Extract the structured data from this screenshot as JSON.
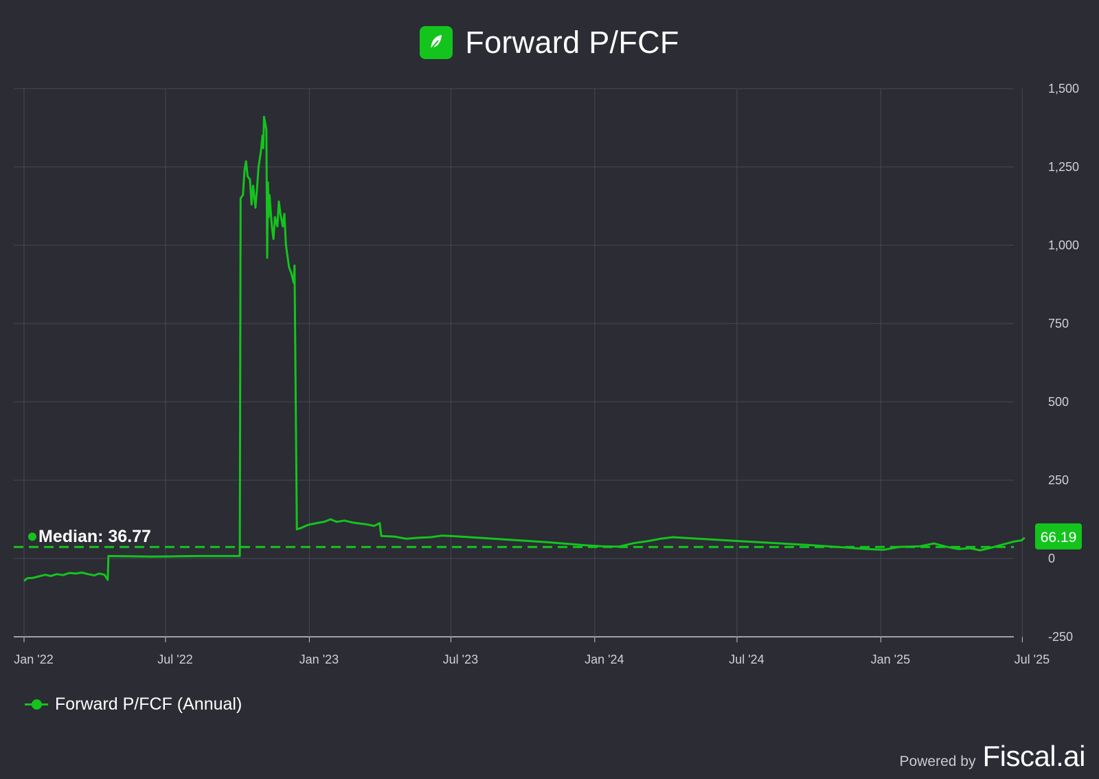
{
  "header": {
    "title": "Forward P/FCF",
    "logo_icon": "feather-icon",
    "logo_color": "#14c41d"
  },
  "legend": {
    "label": "Forward P/FCF (Annual)"
  },
  "footer": {
    "powered_by": "Powered by",
    "brand": "Fiscal.ai"
  },
  "colors": {
    "background": "#2b2c34",
    "series": "#14c41d",
    "grid": "#474852",
    "axis_text": "#d0d1d6"
  },
  "chart_data": {
    "type": "line",
    "title": "Forward P/FCF",
    "ylim": [
      -250,
      1500
    ],
    "yticks": [
      -250,
      0,
      250,
      500,
      750,
      1000,
      1250,
      1500
    ],
    "ytick_labels": [
      "-250",
      "0",
      "250",
      "500",
      "750",
      "1,000",
      "1,250",
      "1,500"
    ],
    "xlim": [
      "2022-01-01",
      "2025-07-05"
    ],
    "xticks": [
      "2022-01-01",
      "2022-07-01",
      "2023-01-01",
      "2023-07-01",
      "2024-01-01",
      "2024-07-01",
      "2025-01-01",
      "2025-07-01"
    ],
    "xtick_labels": [
      "Jan '22",
      "Jul '22",
      "Jan '23",
      "Jul '23",
      "Jan '24",
      "Jul '24",
      "Jan '25",
      "Jul '25"
    ],
    "grid": true,
    "legend_position": "bottom-left",
    "median": {
      "label": "Median: 36.77",
      "value": 36.77
    },
    "last_value": {
      "label": "66.19",
      "value": 66.19
    },
    "series": [
      {
        "name": "Forward P/FCF (Annual)",
        "points": [
          [
            "2022-01-01",
            -72
          ],
          [
            "2022-01-05",
            -63
          ],
          [
            "2022-01-12",
            -62
          ],
          [
            "2022-01-20",
            -57
          ],
          [
            "2022-01-28",
            -52
          ],
          [
            "2022-02-04",
            -56
          ],
          [
            "2022-02-12",
            -50
          ],
          [
            "2022-02-20",
            -53
          ],
          [
            "2022-02-28",
            -46
          ],
          [
            "2022-03-08",
            -48
          ],
          [
            "2022-03-16",
            -45
          ],
          [
            "2022-03-24",
            -50
          ],
          [
            "2022-04-01",
            -54
          ],
          [
            "2022-04-07",
            -48
          ],
          [
            "2022-04-14",
            -52
          ],
          [
            "2022-04-18",
            -68
          ],
          [
            "2022-04-19",
            8
          ],
          [
            "2022-05-15",
            7
          ],
          [
            "2022-06-15",
            6
          ],
          [
            "2022-07-15",
            7
          ],
          [
            "2022-08-15",
            8
          ],
          [
            "2022-09-15",
            8
          ],
          [
            "2022-10-04",
            8
          ],
          [
            "2022-10-05",
            1150
          ],
          [
            "2022-10-08",
            1160
          ],
          [
            "2022-10-10",
            1240
          ],
          [
            "2022-10-12",
            1268
          ],
          [
            "2022-10-14",
            1220
          ],
          [
            "2022-10-17",
            1210
          ],
          [
            "2022-10-19",
            1130
          ],
          [
            "2022-10-21",
            1190
          ],
          [
            "2022-10-24",
            1120
          ],
          [
            "2022-10-26",
            1180
          ],
          [
            "2022-10-28",
            1250
          ],
          [
            "2022-10-31",
            1300
          ],
          [
            "2022-11-02",
            1350
          ],
          [
            "2022-11-03",
            1310
          ],
          [
            "2022-11-04",
            1410
          ],
          [
            "2022-11-07",
            1370
          ],
          [
            "2022-11-08",
            960
          ],
          [
            "2022-11-09",
            1200
          ],
          [
            "2022-11-10",
            1090
          ],
          [
            "2022-11-11",
            1160
          ],
          [
            "2022-11-14",
            1060
          ],
          [
            "2022-11-16",
            1020
          ],
          [
            "2022-11-18",
            1090
          ],
          [
            "2022-11-21",
            1060
          ],
          [
            "2022-11-23",
            1140
          ],
          [
            "2022-11-25",
            1100
          ],
          [
            "2022-11-28",
            1060
          ],
          [
            "2022-11-30",
            1100
          ],
          [
            "2022-12-02",
            1000
          ],
          [
            "2022-12-06",
            930
          ],
          [
            "2022-12-09",
            910
          ],
          [
            "2022-12-12",
            880
          ],
          [
            "2022-12-13",
            935
          ],
          [
            "2022-12-16",
            93
          ],
          [
            "2022-12-22",
            98
          ],
          [
            "2022-12-30",
            107
          ],
          [
            "2023-01-10",
            113
          ],
          [
            "2023-01-20",
            117
          ],
          [
            "2023-01-28",
            125
          ],
          [
            "2023-02-05",
            117
          ],
          [
            "2023-02-15",
            121
          ],
          [
            "2023-02-25",
            115
          ],
          [
            "2023-03-05",
            112
          ],
          [
            "2023-03-15",
            109
          ],
          [
            "2023-03-25",
            104
          ],
          [
            "2023-04-01",
            113
          ],
          [
            "2023-04-03",
            72
          ],
          [
            "2023-04-20",
            70
          ],
          [
            "2023-05-05",
            63
          ],
          [
            "2023-05-20",
            66
          ],
          [
            "2023-06-05",
            68
          ],
          [
            "2023-06-20",
            73
          ],
          [
            "2023-07-01",
            72
          ],
          [
            "2023-09-01",
            62
          ],
          [
            "2023-11-01",
            52
          ],
          [
            "2023-12-20",
            42
          ],
          [
            "2024-01-10",
            39
          ],
          [
            "2024-02-01",
            38
          ],
          [
            "2024-02-20",
            49
          ],
          [
            "2024-03-10",
            56
          ],
          [
            "2024-03-25",
            63
          ],
          [
            "2024-04-10",
            68
          ],
          [
            "2024-07-01",
            56
          ],
          [
            "2024-10-01",
            43
          ],
          [
            "2024-12-15",
            30
          ],
          [
            "2025-01-05",
            28
          ],
          [
            "2025-01-25",
            37
          ],
          [
            "2025-02-20",
            39
          ],
          [
            "2025-03-10",
            48
          ],
          [
            "2025-03-25",
            38
          ],
          [
            "2025-04-10",
            30
          ],
          [
            "2025-04-25",
            33
          ],
          [
            "2025-05-08",
            26
          ],
          [
            "2025-05-20",
            33
          ],
          [
            "2025-06-05",
            44
          ],
          [
            "2025-06-20",
            54
          ],
          [
            "2025-06-30",
            58
          ],
          [
            "2025-07-04",
            66.19
          ]
        ]
      }
    ]
  }
}
